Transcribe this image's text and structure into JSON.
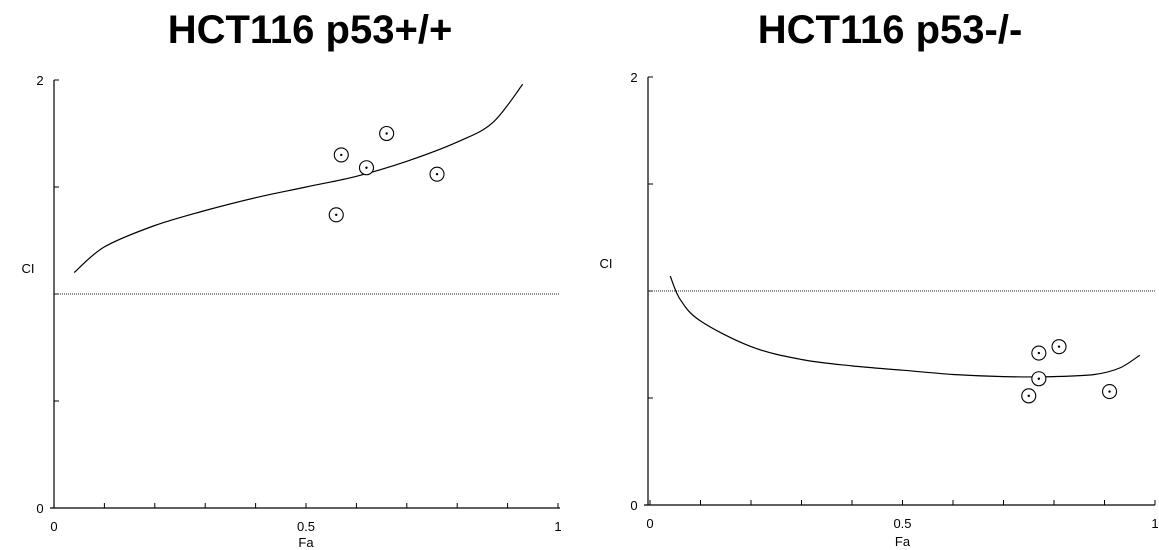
{
  "chart_data": [
    {
      "type": "scatter",
      "title": "HCT116 p53+/+",
      "xlabel": "Fa",
      "ylabel": "CI",
      "xlim": [
        0,
        1
      ],
      "ylim": [
        0,
        2
      ],
      "x_tick_labels": [
        "0",
        "0.5",
        "1"
      ],
      "y_tick_labels": [
        "0",
        "2"
      ],
      "reference_line_y": 1,
      "points": [
        {
          "x": 0.57,
          "y": 1.65
        },
        {
          "x": 0.66,
          "y": 1.75
        },
        {
          "x": 0.62,
          "y": 1.59
        },
        {
          "x": 0.56,
          "y": 1.37
        },
        {
          "x": 0.76,
          "y": 1.56
        }
      ],
      "curve": [
        {
          "x": 0.04,
          "y": 1.1
        },
        {
          "x": 0.1,
          "y": 1.22
        },
        {
          "x": 0.2,
          "y": 1.32
        },
        {
          "x": 0.3,
          "y": 1.39
        },
        {
          "x": 0.4,
          "y": 1.45
        },
        {
          "x": 0.5,
          "y": 1.5
        },
        {
          "x": 0.6,
          "y": 1.55
        },
        {
          "x": 0.7,
          "y": 1.62
        },
        {
          "x": 0.8,
          "y": 1.71
        },
        {
          "x": 0.87,
          "y": 1.8
        },
        {
          "x": 0.93,
          "y": 1.98
        }
      ],
      "grid": false
    },
    {
      "type": "scatter",
      "title": "HCT116 p53-/-",
      "xlabel": "Fa",
      "ylabel": "CI",
      "xlim": [
        0,
        1
      ],
      "ylim": [
        0,
        2
      ],
      "x_tick_labels": [
        "0",
        "0.5",
        "1"
      ],
      "y_tick_labels": [
        "0",
        "2"
      ],
      "reference_line_y": 1,
      "points": [
        {
          "x": 0.77,
          "y": 0.71
        },
        {
          "x": 0.81,
          "y": 0.74
        },
        {
          "x": 0.77,
          "y": 0.59
        },
        {
          "x": 0.75,
          "y": 0.51
        },
        {
          "x": 0.91,
          "y": 0.53
        }
      ],
      "curve": [
        {
          "x": 0.04,
          "y": 1.07
        },
        {
          "x": 0.06,
          "y": 0.96
        },
        {
          "x": 0.1,
          "y": 0.86
        },
        {
          "x": 0.2,
          "y": 0.74
        },
        {
          "x": 0.3,
          "y": 0.68
        },
        {
          "x": 0.4,
          "y": 0.65
        },
        {
          "x": 0.5,
          "y": 0.63
        },
        {
          "x": 0.6,
          "y": 0.61
        },
        {
          "x": 0.7,
          "y": 0.6
        },
        {
          "x": 0.8,
          "y": 0.6
        },
        {
          "x": 0.88,
          "y": 0.61
        },
        {
          "x": 0.93,
          "y": 0.64
        },
        {
          "x": 0.97,
          "y": 0.7
        }
      ],
      "grid": false
    }
  ]
}
